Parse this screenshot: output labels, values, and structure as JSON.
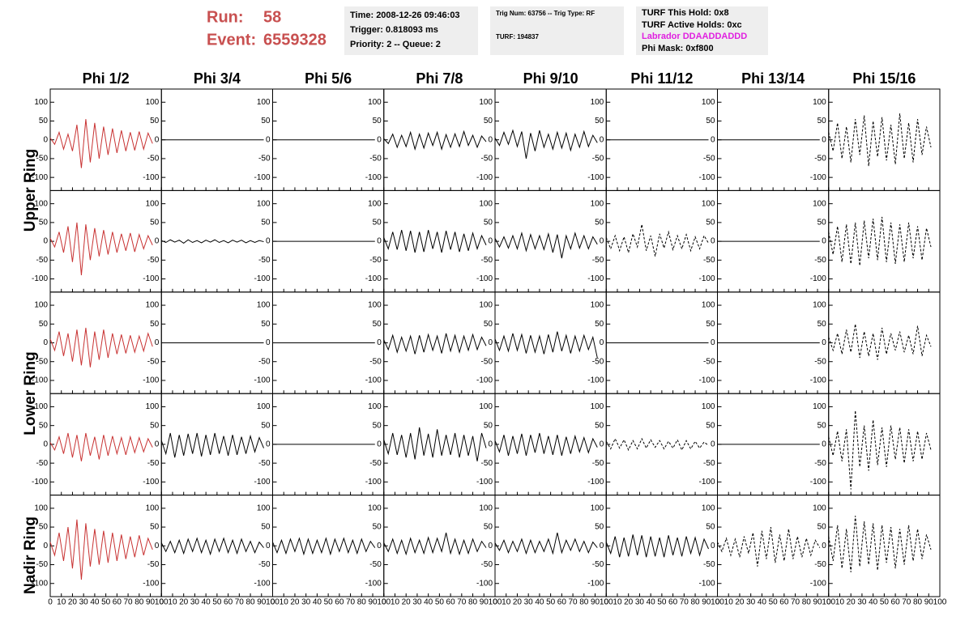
{
  "header": {
    "run_label": "Run:",
    "run": "58",
    "event_label": "Event:",
    "event": "6559328",
    "time": "Time: 2008-12-26 09:46:03",
    "trigger": "Trigger: 0.818093 ms",
    "priority": "Priority: 2 -- Queue: 2",
    "trig_num": "Trig Num: 63756 -- Trig Type: RF",
    "turf": "TURF: 194837",
    "turf_hold": "TURF This Hold: 0x8",
    "turf_active": "TURF Active Holds: 0xc",
    "labrador": "Labrador DDAADDADDD",
    "phi_mask": "Phi Mask: 0xf800"
  },
  "columns": [
    "Phi 1/2",
    "Phi 3/4",
    "Phi 5/6",
    "Phi 7/8",
    "Phi 9/10",
    "Phi 11/12",
    "Phi 13/14",
    "Phi 15/16"
  ],
  "rings": [
    "Upper Ring",
    "Lower Ring",
    "Nadir Ring"
  ],
  "axes": {
    "xlim": [
      0,
      100
    ],
    "xticks": [
      0,
      10,
      20,
      30,
      40,
      50,
      60,
      70,
      80,
      90,
      100
    ],
    "ylim": [
      -135,
      135
    ],
    "yticks": [
      -100,
      -50,
      0,
      50,
      100
    ]
  },
  "trace_x": [
    0,
    4,
    8,
    12,
    16,
    20,
    24,
    28,
    32,
    36,
    40,
    44,
    48,
    52,
    56,
    60,
    64,
    68,
    72,
    76,
    80,
    84,
    88,
    92
  ],
  "panels": [
    [
      {
        "color": "#c83232",
        "dashed": false,
        "values": [
          5,
          -12,
          20,
          -25,
          15,
          -30,
          40,
          -75,
          55,
          -60,
          45,
          -50,
          35,
          -40,
          30,
          -35,
          25,
          -30,
          20,
          -28,
          22,
          -25,
          18,
          -10
        ]
      },
      {
        "color": "#000000",
        "dashed": false,
        "values": [
          0,
          0,
          0,
          0,
          0,
          0,
          0,
          0,
          0,
          0,
          0,
          0,
          0,
          0,
          0,
          0,
          0,
          0,
          0,
          0,
          0,
          0,
          0,
          0
        ]
      },
      {
        "color": "#000000",
        "dashed": false,
        "values": [
          0,
          0,
          0,
          0,
          0,
          0,
          0,
          0,
          0,
          0,
          0,
          0,
          0,
          0,
          0,
          0,
          0,
          0,
          0,
          0,
          0,
          0,
          0,
          0
        ]
      },
      {
        "color": "#000000",
        "dashed": false,
        "values": [
          3,
          -10,
          15,
          -20,
          12,
          -18,
          20,
          -25,
          15,
          -22,
          18,
          -15,
          20,
          -25,
          14,
          -20,
          16,
          -18,
          22,
          -15,
          12,
          -20,
          10,
          -5
        ]
      },
      {
        "color": "#000000",
        "dashed": false,
        "values": [
          5,
          -15,
          20,
          -12,
          25,
          -18,
          22,
          -50,
          18,
          -30,
          25,
          -20,
          15,
          -25,
          20,
          -22,
          18,
          -28,
          15,
          -20,
          22,
          -18,
          12,
          -8
        ]
      },
      {
        "color": "#000000",
        "dashed": false,
        "values": [
          0,
          0,
          0,
          0,
          0,
          0,
          0,
          0,
          0,
          0,
          0,
          0,
          0,
          0,
          0,
          0,
          0,
          0,
          0,
          0,
          0,
          0,
          0,
          0
        ]
      },
      {
        "color": "#000000",
        "dashed": false,
        "values": [
          0,
          0,
          0,
          0,
          0,
          0,
          0,
          0,
          0,
          0,
          0,
          0,
          0,
          0,
          0,
          0,
          0,
          0,
          0,
          0,
          0,
          0,
          0,
          0
        ]
      },
      {
        "color": "#000000",
        "dashed": true,
        "values": [
          20,
          -30,
          45,
          -50,
          35,
          -60,
          55,
          -40,
          65,
          -70,
          50,
          -45,
          60,
          -55,
          40,
          -65,
          70,
          -50,
          45,
          -60,
          55,
          -40,
          35,
          -20
        ]
      }
    ],
    [
      {
        "color": "#c83232",
        "dashed": false,
        "values": [
          8,
          -15,
          25,
          -30,
          40,
          -55,
          50,
          -90,
          45,
          -50,
          35,
          -40,
          30,
          -35,
          25,
          -30,
          20,
          -25,
          22,
          -28,
          18,
          -20,
          15,
          -10
        ]
      },
      {
        "color": "#000000",
        "dashed": false,
        "values": [
          2,
          -3,
          4,
          -2,
          3,
          -5,
          4,
          -3,
          2,
          -4,
          3,
          -2,
          4,
          -3,
          2,
          -4,
          3,
          -2,
          3,
          -4,
          2,
          -3,
          2,
          -1
        ]
      },
      {
        "color": "#000000",
        "dashed": false,
        "values": [
          0,
          0,
          0,
          0,
          0,
          0,
          0,
          0,
          0,
          0,
          0,
          0,
          0,
          0,
          0,
          0,
          0,
          0,
          0,
          0,
          0,
          0,
          0,
          0
        ]
      },
      {
        "color": "#000000",
        "dashed": false,
        "values": [
          10,
          -20,
          25,
          -22,
          30,
          -25,
          28,
          -30,
          25,
          -28,
          30,
          -20,
          25,
          -30,
          28,
          -22,
          25,
          -28,
          20,
          -25,
          22,
          -20,
          15,
          -10
        ]
      },
      {
        "color": "#000000",
        "dashed": false,
        "values": [
          8,
          -15,
          12,
          -18,
          15,
          -20,
          22,
          -25,
          18,
          -20,
          15,
          -22,
          20,
          -30,
          18,
          -45,
          15,
          -20,
          22,
          -18,
          15,
          -20,
          12,
          -8
        ]
      },
      {
        "color": "#000000",
        "dashed": true,
        "values": [
          10,
          -20,
          15,
          -25,
          12,
          -30,
          20,
          -15,
          45,
          -25,
          15,
          -40,
          20,
          -18,
          25,
          -22,
          15,
          -20,
          18,
          -25,
          12,
          -20,
          15,
          -5
        ]
      },
      {
        "color": "#000000",
        "dashed": false,
        "values": [
          0,
          0,
          0,
          0,
          0,
          0,
          0,
          0,
          0,
          0,
          0,
          0,
          0,
          0,
          0,
          0,
          0,
          0,
          0,
          0,
          0,
          0,
          0,
          0
        ]
      },
      {
        "color": "#000000",
        "dashed": true,
        "values": [
          25,
          -35,
          40,
          -55,
          45,
          -60,
          50,
          -65,
          55,
          -45,
          60,
          -50,
          65,
          -55,
          50,
          -60,
          45,
          -55,
          50,
          -45,
          40,
          -50,
          35,
          -15
        ]
      }
    ],
    [
      {
        "color": "#c83232",
        "dashed": false,
        "values": [
          10,
          -20,
          30,
          -35,
          25,
          -50,
          35,
          -60,
          40,
          -65,
          30,
          -45,
          35,
          -40,
          25,
          -30,
          22,
          -28,
          20,
          -25,
          18,
          -22,
          25,
          -10
        ]
      },
      {
        "color": "#000000",
        "dashed": false,
        "values": [
          0,
          0,
          0,
          0,
          0,
          0,
          0,
          0,
          0,
          0,
          0,
          0,
          0,
          0,
          0,
          0,
          0,
          0,
          0,
          0,
          0,
          0,
          0,
          0
        ]
      },
      {
        "color": "#000000",
        "dashed": false,
        "values": [
          0,
          0,
          0,
          0,
          0,
          0,
          0,
          0,
          0,
          0,
          0,
          0,
          0,
          0,
          0,
          0,
          0,
          0,
          0,
          0,
          0,
          0,
          0,
          0
        ]
      },
      {
        "color": "#000000",
        "dashed": false,
        "values": [
          8,
          -18,
          20,
          -25,
          15,
          -22,
          18,
          -30,
          20,
          -25,
          22,
          -20,
          18,
          -28,
          25,
          -22,
          20,
          -25,
          18,
          -20,
          22,
          -18,
          15,
          -8
        ]
      },
      {
        "color": "#000000",
        "dashed": false,
        "values": [
          10,
          -20,
          18,
          -22,
          25,
          -20,
          22,
          -28,
          20,
          -25,
          18,
          -30,
          22,
          -25,
          30,
          -22,
          20,
          -28,
          18,
          -22,
          20,
          -18,
          15,
          -40
        ]
      },
      {
        "color": "#000000",
        "dashed": false,
        "values": [
          0,
          0,
          0,
          0,
          0,
          0,
          0,
          0,
          0,
          0,
          0,
          0,
          0,
          0,
          0,
          0,
          0,
          0,
          0,
          0,
          0,
          0,
          0,
          0
        ]
      },
      {
        "color": "#000000",
        "dashed": false,
        "values": [
          0,
          0,
          0,
          0,
          0,
          0,
          0,
          0,
          0,
          0,
          0,
          0,
          0,
          0,
          0,
          0,
          0,
          0,
          0,
          0,
          0,
          0,
          0,
          0
        ]
      },
      {
        "color": "#000000",
        "dashed": true,
        "values": [
          15,
          -20,
          25,
          -30,
          35,
          -25,
          50,
          -40,
          30,
          -35,
          25,
          -45,
          40,
          -30,
          25,
          -20,
          30,
          -25,
          20,
          -30,
          45,
          -35,
          20,
          -10
        ]
      }
    ],
    [
      {
        "color": "#c83232",
        "dashed": false,
        "values": [
          5,
          -15,
          20,
          -25,
          30,
          -35,
          25,
          -45,
          30,
          -30,
          20,
          -40,
          25,
          -30,
          22,
          -25,
          18,
          -28,
          20,
          -22,
          18,
          -20,
          15,
          -8
        ]
      },
      {
        "color": "#000000",
        "dashed": false,
        "values": [
          10,
          -25,
          30,
          -35,
          25,
          -30,
          28,
          -25,
          30,
          -32,
          25,
          -28,
          30,
          -25,
          22,
          -30,
          25,
          -28,
          20,
          -25,
          22,
          -20,
          18,
          -10
        ]
      },
      {
        "color": "#000000",
        "dashed": false,
        "values": [
          0,
          0,
          0,
          0,
          0,
          0,
          0,
          0,
          0,
          0,
          0,
          0,
          0,
          0,
          0,
          0,
          0,
          0,
          0,
          0,
          0,
          0,
          0,
          0
        ]
      },
      {
        "color": "#000000",
        "dashed": false,
        "values": [
          12,
          -25,
          30,
          -28,
          25,
          -35,
          30,
          -40,
          45,
          -30,
          28,
          -35,
          40,
          -30,
          25,
          -28,
          30,
          -35,
          25,
          -30,
          22,
          -45,
          30,
          -10
        ]
      },
      {
        "color": "#000000",
        "dashed": false,
        "values": [
          10,
          -20,
          25,
          -30,
          22,
          -25,
          28,
          -30,
          25,
          -22,
          30,
          -25,
          22,
          -28,
          25,
          -30,
          20,
          -25,
          22,
          -20,
          18,
          -22,
          15,
          -8
        ]
      },
      {
        "color": "#000000",
        "dashed": true,
        "values": [
          8,
          -12,
          15,
          -10,
          12,
          -15,
          10,
          -12,
          15,
          -10,
          12,
          -8,
          10,
          -12,
          8,
          -10,
          12,
          -15,
          10,
          -12,
          8,
          -10,
          6,
          -3
        ]
      },
      {
        "color": "#000000",
        "dashed": false,
        "values": [
          0,
          0,
          0,
          0,
          0,
          0,
          0,
          0,
          0,
          0,
          0,
          0,
          0,
          0,
          0,
          0,
          0,
          0,
          0,
          0,
          0,
          0,
          0,
          0
        ]
      },
      {
        "color": "#000000",
        "dashed": true,
        "values": [
          20,
          -30,
          35,
          -45,
          40,
          -120,
          90,
          -60,
          50,
          -70,
          65,
          -55,
          45,
          -60,
          50,
          -40,
          45,
          -50,
          40,
          -45,
          35,
          -40,
          30,
          -15
        ]
      }
    ],
    [
      {
        "color": "#c83232",
        "dashed": false,
        "values": [
          10,
          -25,
          35,
          -40,
          50,
          -60,
          70,
          -90,
          60,
          -55,
          45,
          -50,
          40,
          -45,
          35,
          -40,
          30,
          -35,
          25,
          -30,
          28,
          -25,
          20,
          -10
        ]
      },
      {
        "color": "#000000",
        "dashed": false,
        "values": [
          8,
          -15,
          12,
          -18,
          15,
          -20,
          18,
          -15,
          20,
          -18,
          15,
          -22,
          18,
          -15,
          20,
          -18,
          15,
          -20,
          18,
          -15,
          12,
          -18,
          10,
          -5
        ]
      },
      {
        "color": "#000000",
        "dashed": false,
        "values": [
          10,
          -18,
          15,
          -20,
          18,
          -15,
          20,
          -22,
          18,
          -20,
          15,
          -18,
          20,
          -22,
          18,
          -15,
          20,
          -18,
          15,
          -20,
          18,
          -15,
          12,
          -5
        ]
      },
      {
        "color": "#000000",
        "dashed": false,
        "values": [
          8,
          -15,
          18,
          -20,
          15,
          -22,
          20,
          -18,
          15,
          -20,
          22,
          -18,
          20,
          -15,
          35,
          -20,
          18,
          -22,
          15,
          -20,
          18,
          -15,
          12,
          -5
        ]
      },
      {
        "color": "#000000",
        "dashed": false,
        "values": [
          8,
          -12,
          15,
          -18,
          12,
          -15,
          18,
          -20,
          15,
          -18,
          12,
          -15,
          18,
          -20,
          35,
          -18,
          15,
          -12,
          18,
          -15,
          12,
          -18,
          10,
          -5
        ]
      },
      {
        "color": "#000000",
        "dashed": false,
        "values": [
          10,
          -20,
          25,
          -30,
          22,
          -28,
          30,
          -25,
          28,
          -30,
          25,
          -28,
          22,
          -30,
          28,
          -25,
          22,
          -28,
          25,
          -20,
          22,
          -25,
          18,
          -8
        ]
      },
      {
        "color": "#000000",
        "dashed": true,
        "values": [
          10,
          -15,
          20,
          -25,
          18,
          -30,
          25,
          -20,
          35,
          -55,
          40,
          -35,
          50,
          -45,
          30,
          -40,
          45,
          -35,
          25,
          -30,
          20,
          -25,
          15,
          -5
        ]
      },
      {
        "color": "#000000",
        "dashed": true,
        "values": [
          25,
          -40,
          55,
          -60,
          45,
          -70,
          80,
          -55,
          65,
          -50,
          60,
          -65,
          55,
          -45,
          50,
          -60,
          45,
          -50,
          55,
          -40,
          45,
          -35,
          30,
          -10
        ]
      }
    ]
  ]
}
